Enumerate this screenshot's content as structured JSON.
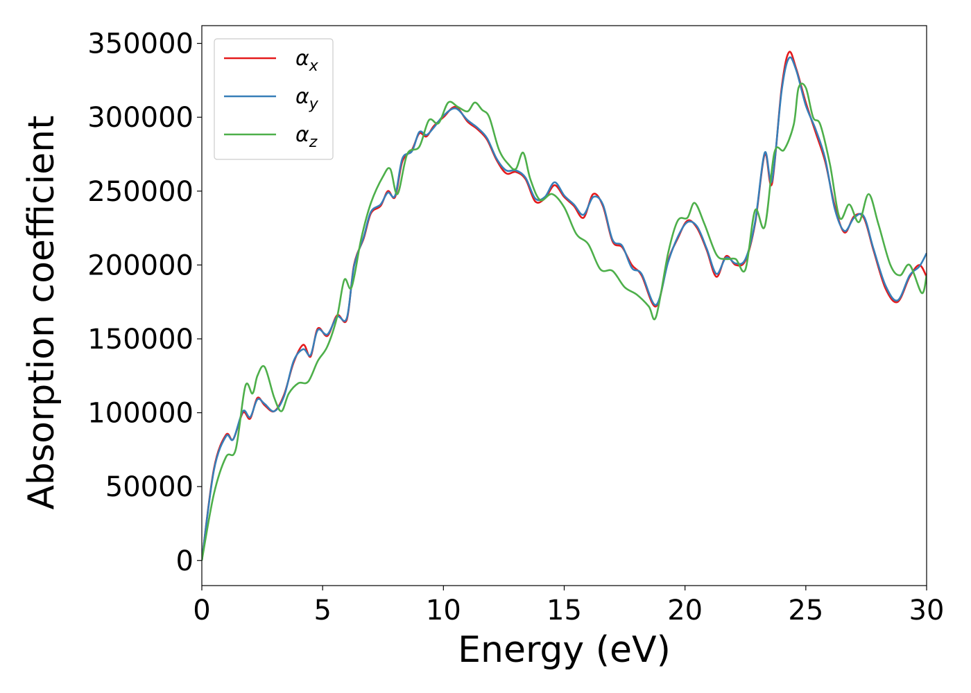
{
  "chart_data": {
    "type": "line",
    "xlabel": "Energy (eV)",
    "ylabel": "Absorption coefficient",
    "xlim": [
      0,
      30
    ],
    "ylim": [
      -17000,
      362000
    ],
    "xticks": [
      0,
      5,
      10,
      15,
      20,
      25,
      30
    ],
    "yticks": [
      0,
      50000,
      100000,
      150000,
      200000,
      250000,
      300000,
      350000
    ],
    "grid": false,
    "legend_position": "top-left",
    "series": [
      {
        "name": "α_x",
        "name_base": "α",
        "name_sub": "x",
        "color": "#e41a1c",
        "x": [
          0,
          0.5,
          1.0,
          1.3,
          1.7,
          2.0,
          2.3,
          2.6,
          3.0,
          3.4,
          3.8,
          4.2,
          4.5,
          4.8,
          5.2,
          5.6,
          6.0,
          6.3,
          6.7,
          7.0,
          7.4,
          7.7,
          8.0,
          8.3,
          8.7,
          9.0,
          9.3,
          9.6,
          10.0,
          10.5,
          11.0,
          11.4,
          11.8,
          12.2,
          12.6,
          13.0,
          13.4,
          13.8,
          14.2,
          14.6,
          15.0,
          15.4,
          15.8,
          16.2,
          16.6,
          17.0,
          17.4,
          17.8,
          18.2,
          18.8,
          19.3,
          19.7,
          20.1,
          20.5,
          20.9,
          21.3,
          21.7,
          22.1,
          22.5,
          22.9,
          23.3,
          23.6,
          24.0,
          24.3,
          24.6,
          25.0,
          25.4,
          25.8,
          26.2,
          26.6,
          27.0,
          27.4,
          27.8,
          28.3,
          28.8,
          29.3,
          29.7,
          30.0
        ],
        "values": [
          0,
          62000,
          85000,
          82000,
          100000,
          96000,
          110000,
          105000,
          101000,
          112000,
          134000,
          146000,
          138000,
          157000,
          152000,
          166000,
          163000,
          200000,
          218000,
          235000,
          240000,
          250000,
          246000,
          270000,
          278000,
          289000,
          287000,
          294000,
          300000,
          307000,
          297000,
          292000,
          285000,
          271000,
          262000,
          263000,
          258000,
          243000,
          245000,
          254000,
          246000,
          240000,
          232000,
          248000,
          240000,
          216000,
          212000,
          200000,
          193000,
          172000,
          203000,
          218000,
          230000,
          225000,
          210000,
          192000,
          206000,
          200000,
          203000,
          228000,
          275000,
          255000,
          320000,
          344000,
          333000,
          310000,
          290000,
          270000,
          240000,
          222000,
          233000,
          232000,
          210000,
          184000,
          175000,
          192000,
          200000,
          192000
        ]
      },
      {
        "name": "α_y",
        "name_base": "α",
        "name_sub": "y",
        "color": "#377eb8",
        "x": [
          0,
          0.5,
          1.0,
          1.3,
          1.7,
          2.0,
          2.3,
          2.6,
          3.0,
          3.4,
          3.8,
          4.2,
          4.5,
          4.8,
          5.2,
          5.6,
          6.0,
          6.3,
          6.7,
          7.0,
          7.4,
          7.7,
          8.0,
          8.3,
          8.7,
          9.0,
          9.3,
          9.6,
          10.0,
          10.5,
          11.0,
          11.4,
          11.8,
          12.2,
          12.6,
          13.0,
          13.4,
          13.8,
          14.2,
          14.6,
          15.0,
          15.4,
          15.8,
          16.2,
          16.6,
          17.0,
          17.4,
          17.8,
          18.2,
          18.8,
          19.3,
          19.7,
          20.1,
          20.5,
          20.9,
          21.3,
          21.7,
          22.1,
          22.5,
          22.9,
          23.3,
          23.6,
          24.0,
          24.3,
          24.6,
          25.0,
          25.4,
          25.8,
          26.2,
          26.6,
          27.0,
          27.4,
          27.8,
          28.3,
          28.8,
          29.3,
          29.7,
          30.0
        ],
        "values": [
          0,
          61000,
          84000,
          82000,
          101000,
          97000,
          109000,
          106000,
          101000,
          111000,
          135000,
          143000,
          139000,
          156000,
          153000,
          165000,
          164000,
          199000,
          219000,
          236000,
          241000,
          249000,
          247000,
          272000,
          277000,
          290000,
          288000,
          293000,
          301000,
          306000,
          298000,
          293000,
          286000,
          272000,
          264000,
          264000,
          259000,
          245000,
          246000,
          256000,
          247000,
          241000,
          234000,
          246000,
          241000,
          217000,
          213000,
          198000,
          194000,
          173000,
          202000,
          219000,
          229000,
          226000,
          211000,
          194000,
          205000,
          201000,
          204000,
          229000,
          276000,
          257000,
          318000,
          340000,
          332000,
          308000,
          292000,
          272000,
          238000,
          223000,
          232000,
          233000,
          211000,
          186000,
          176000,
          193000,
          199000,
          208000
        ]
      },
      {
        "name": "α_z",
        "name_base": "α",
        "name_sub": "z",
        "color": "#4daf4a",
        "x": [
          0,
          0.5,
          1.0,
          1.4,
          1.8,
          2.1,
          2.3,
          2.6,
          3.0,
          3.3,
          3.6,
          4.0,
          4.4,
          4.8,
          5.2,
          5.6,
          5.9,
          6.2,
          6.6,
          7.0,
          7.5,
          7.8,
          8.1,
          8.5,
          9.0,
          9.4,
          9.8,
          10.2,
          10.6,
          11.0,
          11.3,
          11.6,
          11.9,
          12.3,
          12.7,
          13.0,
          13.3,
          13.6,
          14.0,
          14.5,
          15.0,
          15.5,
          16.0,
          16.5,
          17.0,
          17.5,
          18.0,
          18.5,
          18.8,
          19.3,
          19.7,
          20.1,
          20.4,
          20.8,
          21.3,
          21.7,
          22.1,
          22.5,
          22.9,
          23.3,
          23.7,
          24.1,
          24.5,
          24.7,
          25.0,
          25.3,
          25.6,
          26.0,
          26.4,
          26.8,
          27.2,
          27.6,
          28.0,
          28.5,
          28.9,
          29.3,
          29.8,
          30.0
        ],
        "values": [
          0,
          45000,
          70000,
          75000,
          118000,
          113000,
          125000,
          131000,
          110000,
          101000,
          113000,
          120000,
          121000,
          135000,
          145000,
          165000,
          190000,
          185000,
          218000,
          242000,
          260000,
          265000,
          248000,
          275000,
          280000,
          298000,
          296000,
          310000,
          307000,
          304000,
          310000,
          305000,
          300000,
          278000,
          268000,
          265000,
          276000,
          258000,
          244000,
          248000,
          239000,
          221000,
          214000,
          197000,
          196000,
          185000,
          180000,
          172000,
          165000,
          208000,
          230000,
          232000,
          242000,
          228000,
          207000,
          204000,
          204000,
          197000,
          237000,
          226000,
          276000,
          278000,
          295000,
          320000,
          320000,
          300000,
          295000,
          268000,
          232000,
          241000,
          229000,
          248000,
          228000,
          200000,
          193000,
          200000,
          181000,
          193000
        ]
      }
    ]
  }
}
